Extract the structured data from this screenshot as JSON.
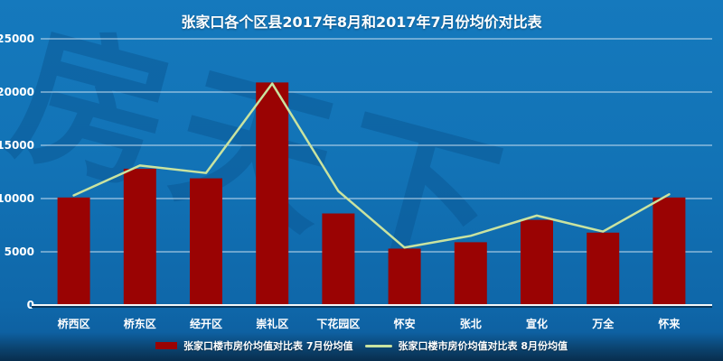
{
  "title": "张家口各个区县2017年8月和2017年7月份均价对比表",
  "watermark": "房天下",
  "colors": {
    "background_top": "#1579bd",
    "background_bottom": "#082e4e",
    "bar": "#9a0303",
    "line": "#c9e3a0",
    "grid": "#dcebf7",
    "axis": "#ffffff",
    "text": "#ffffff",
    "watermark": "#0b5a97"
  },
  "legend": [
    {
      "swatch": "bar",
      "label": "张家口楼市房价均值对比表 7月份均值"
    },
    {
      "swatch": "line",
      "label": "张家口楼市房价均值对比表 8月份均值"
    }
  ],
  "chart_data": {
    "type": "bar+line",
    "title": "张家口各个区县2017年8月和2017年7月份均价对比表",
    "categories": [
      "桥西区",
      "桥东区",
      "经开区",
      "崇礼区",
      "下花园区",
      "怀安",
      "张北",
      "宣化",
      "万全",
      "怀来"
    ],
    "series": [
      {
        "name": "张家口楼市房价均值对比表 7月份均值",
        "type": "bar",
        "color": "#9a0303",
        "values": [
          10100,
          12800,
          11900,
          20900,
          8600,
          5300,
          5900,
          8000,
          6800,
          10100
        ]
      },
      {
        "name": "张家口楼市房价均值对比表 8月份均值",
        "type": "line",
        "color": "#c9e3a0",
        "values": [
          10300,
          13100,
          12400,
          20800,
          10700,
          5400,
          6500,
          8400,
          6900,
          10400
        ]
      }
    ],
    "ylim": [
      0,
      25000
    ],
    "ytick_step": 5000,
    "y_ticks": [
      "0",
      "5000",
      "10000",
      "15000",
      "20000",
      "25000"
    ],
    "grid": true,
    "legend_position": "bottom"
  }
}
